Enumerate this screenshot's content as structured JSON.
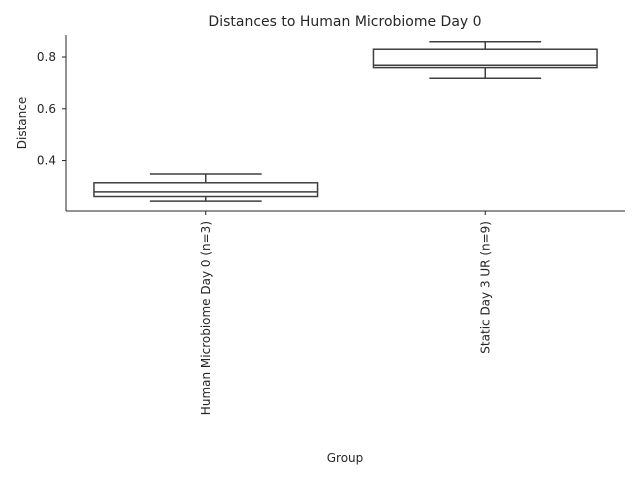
{
  "chart_data": {
    "type": "box",
    "title": "Distances to Human Microbiome Day 0",
    "xlabel": "Group",
    "ylabel": "Distance",
    "ylim": [
      0.205,
      0.885
    ],
    "yticks": [
      "0.4",
      "0.6",
      "0.8"
    ],
    "yticks_values": [
      0.4,
      0.6,
      0.8
    ],
    "grid": false,
    "categories": [
      "Human Microbiome Day 0 (n=3)",
      "Static Day 3 UR (n=9)"
    ],
    "boxes": [
      {
        "category": "Human Microbiome Day 0 (n=3)",
        "whisker_low": 0.243,
        "q1": 0.261,
        "median": 0.279,
        "q3": 0.314,
        "whisker_high": 0.348
      },
      {
        "category": "Static Day 3 UR (n=9)",
        "whisker_low": 0.718,
        "q1": 0.759,
        "median": 0.768,
        "q3": 0.83,
        "whisker_high": 0.859
      }
    ],
    "colors": {
      "stroke": "#3f3f3f",
      "text": "#262626",
      "axis": "#262626"
    }
  }
}
